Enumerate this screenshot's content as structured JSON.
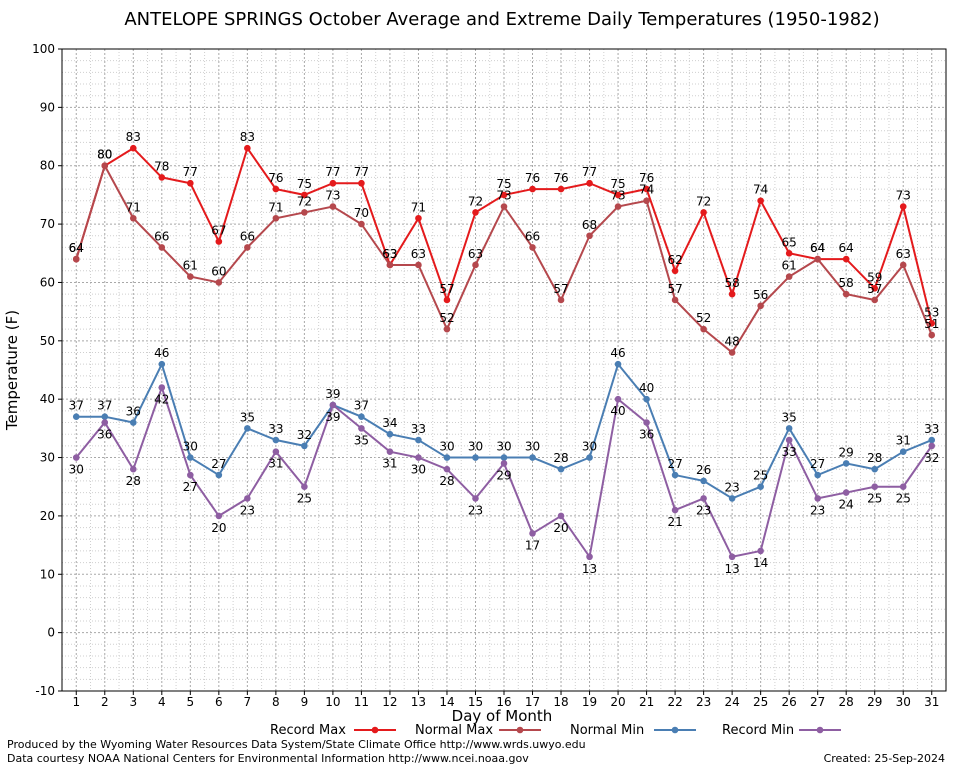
{
  "chart_data": {
    "type": "line",
    "title": "ANTELOPE SPRINGS October Average and Extreme Daily Temperatures (1950-1982)",
    "xlabel": "Day of Month",
    "ylabel": "Temperature (F)",
    "ylim": [
      -10,
      100
    ],
    "xlim": [
      1,
      31
    ],
    "grid": true,
    "legend_position": "bottom",
    "x": [
      1,
      2,
      3,
      4,
      5,
      6,
      7,
      8,
      9,
      10,
      11,
      12,
      13,
      14,
      15,
      16,
      17,
      18,
      19,
      20,
      21,
      22,
      23,
      24,
      25,
      26,
      27,
      28,
      29,
      30,
      31
    ],
    "x_ticks": [
      "1",
      "2",
      "3",
      "4",
      "5",
      "6",
      "7",
      "8",
      "9",
      "10",
      "11",
      "12",
      "13",
      "14",
      "15",
      "16",
      "17",
      "18",
      "19",
      "20",
      "21",
      "22",
      "23",
      "24",
      "25",
      "26",
      "27",
      "28",
      "29",
      "30",
      "31"
    ],
    "y_ticks": [
      "-10",
      "0",
      "10",
      "20",
      "30",
      "40",
      "50",
      "60",
      "70",
      "80",
      "90",
      "100"
    ],
    "series": [
      {
        "name": "Record Max",
        "color": "#e41a1c",
        "label_side": "above",
        "values": [
          64,
          80,
          83,
          78,
          77,
          67,
          83,
          76,
          75,
          77,
          77,
          63,
          71,
          57,
          72,
          75,
          76,
          76,
          77,
          75,
          76,
          62,
          72,
          58,
          74,
          65,
          64,
          64,
          59,
          73,
          53
        ]
      },
      {
        "name": "Normal Max",
        "color": "#b5484d",
        "label_side": "above",
        "values": [
          64,
          80,
          71,
          66,
          61,
          60,
          66,
          71,
          72,
          73,
          70,
          63,
          63,
          52,
          63,
          73,
          66,
          57,
          68,
          73,
          74,
          57,
          52,
          48,
          56,
          61,
          64,
          58,
          57,
          63,
          51
        ]
      },
      {
        "name": "Normal Min",
        "color": "#4a7eb3",
        "label_side": "above",
        "values": [
          37,
          37,
          36,
          46,
          30,
          27,
          35,
          33,
          32,
          39,
          37,
          34,
          33,
          30,
          30,
          30,
          30,
          28,
          30,
          46,
          40,
          27,
          26,
          23,
          25,
          35,
          27,
          29,
          28,
          31,
          33
        ]
      },
      {
        "name": "Record Min",
        "color": "#8e5ea2",
        "label_side": "below",
        "values": [
          30,
          36,
          28,
          42,
          27,
          20,
          23,
          31,
          25,
          39,
          35,
          31,
          30,
          28,
          23,
          29,
          17,
          20,
          13,
          40,
          36,
          21,
          23,
          13,
          14,
          33,
          23,
          24,
          25,
          25,
          32
        ]
      }
    ]
  },
  "footer": {
    "credit_line1": "Produced by the Wyoming Water Resources Data System/State Climate Office http://www.wrds.uwyo.edu",
    "credit_line2": "Data courtesy NOAA National Centers for Environmental Information http://www.ncei.noaa.gov",
    "created": "Created:  25-Sep-2024"
  }
}
